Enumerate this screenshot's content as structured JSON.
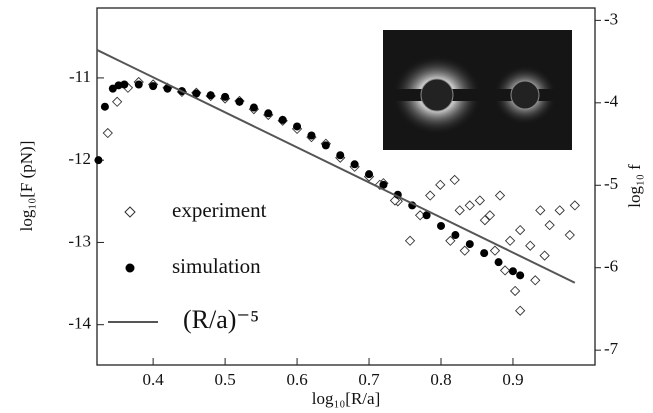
{
  "chart_data": {
    "type": "scatter",
    "xlabel": "log₁₀[R/a]",
    "ylabel": "log₁₀[F (pN)]",
    "y2label": "log₁₀ f",
    "xlim": [
      0.322,
      1.014
    ],
    "xticks": [
      0.4,
      0.5,
      0.6,
      0.7,
      0.8,
      0.9
    ],
    "ylim": [
      -14.49,
      -10.15
    ],
    "yticks": [
      -11,
      -12,
      -13,
      -14
    ],
    "y2lim": [
      -7.18,
      -2.85
    ],
    "y2ticks": [
      -3,
      -4,
      -5,
      -6,
      -7
    ],
    "series": [
      {
        "name": "experiment",
        "marker": "diamond",
        "color": "#333333",
        "x": [
          0.337,
          0.35,
          0.365,
          0.38,
          0.4,
          0.42,
          0.44,
          0.46,
          0.48,
          0.5,
          0.52,
          0.54,
          0.56,
          0.58,
          0.6,
          0.62,
          0.64,
          0.66,
          0.68,
          0.7,
          0.72,
          0.74,
          0.715,
          0.736,
          0.757,
          0.771,
          0.785,
          0.799,
          0.819,
          0.826,
          0.84,
          0.854,
          0.868,
          0.882,
          0.896,
          0.91,
          0.924,
          0.938,
          0.944,
          0.965,
          0.979,
          0.986,
          0.903,
          0.91,
          0.813,
          0.833,
          0.861,
          0.875,
          0.889,
          0.931,
          0.951
        ],
        "values": [
          -11.67,
          -11.29,
          -11.12,
          -11.05,
          -11.08,
          -11.12,
          -11.17,
          -11.18,
          -11.22,
          -11.25,
          -11.28,
          -11.38,
          -11.45,
          -11.52,
          -11.62,
          -11.72,
          -11.8,
          -11.97,
          -12.08,
          -12.2,
          -12.28,
          -12.5,
          -12.3,
          -12.49,
          -12.98,
          -12.67,
          -12.43,
          -12.3,
          -12.24,
          -12.61,
          -12.55,
          -12.49,
          -12.67,
          -12.43,
          -12.98,
          -12.85,
          -13.04,
          -12.61,
          -13.16,
          -12.61,
          -12.91,
          -12.55,
          -13.59,
          -13.83,
          -12.98,
          -13.1,
          -12.73,
          -13.1,
          -13.34,
          -13.46,
          -12.79
        ]
      },
      {
        "name": "simulation",
        "marker": "dot",
        "color": "#000000",
        "x": [
          0.324,
          0.333,
          0.344,
          0.352,
          0.36,
          0.38,
          0.4,
          0.42,
          0.44,
          0.46,
          0.48,
          0.5,
          0.52,
          0.54,
          0.56,
          0.58,
          0.6,
          0.62,
          0.64,
          0.66,
          0.68,
          0.7,
          0.72,
          0.74,
          0.76,
          0.78,
          0.8,
          0.82,
          0.84,
          0.86,
          0.88,
          0.9,
          0.91
        ],
        "values": [
          -12.0,
          -11.35,
          -11.13,
          -11.09,
          -11.08,
          -11.08,
          -11.1,
          -11.13,
          -11.16,
          -11.19,
          -11.21,
          -11.23,
          -11.29,
          -11.36,
          -11.43,
          -11.51,
          -11.59,
          -11.7,
          -11.82,
          -11.94,
          -12.05,
          -12.17,
          -12.3,
          -12.42,
          -12.55,
          -12.67,
          -12.8,
          -12.91,
          -13.02,
          -13.13,
          -13.24,
          -13.35,
          -13.4
        ]
      },
      {
        "name": "(R/a)⁻⁵",
        "marker": "line",
        "color": "#555555",
        "x": [
          0.322,
          0.986
        ],
        "values": [
          -10.66,
          -13.49
        ]
      }
    ]
  }
}
